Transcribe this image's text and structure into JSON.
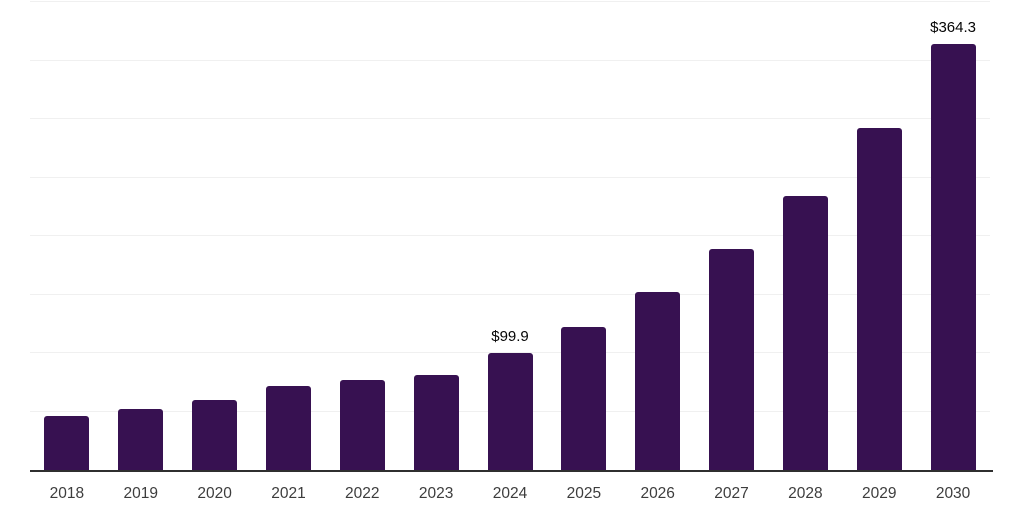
{
  "chart_data": {
    "type": "bar",
    "title": "",
    "xlabel": "",
    "ylabel": "",
    "categories": [
      "2018",
      "2019",
      "2020",
      "2021",
      "2022",
      "2023",
      "2024",
      "2025",
      "2026",
      "2027",
      "2028",
      "2029",
      "2030"
    ],
    "values": [
      46,
      52,
      60,
      72,
      77,
      81.5,
      99.9,
      122,
      152,
      189,
      234,
      292,
      364.3
    ],
    "data_labels": [
      "",
      "",
      "",
      "",
      "",
      "",
      "$99.9",
      "",
      "",
      "",
      "",
      "",
      "$364.3"
    ],
    "ylim": [
      0,
      400
    ],
    "gridline_step": 50,
    "grid": "horizontal-only",
    "legend": "none",
    "y_axis_tick_labels": "none",
    "colors": {
      "bar": "#371151",
      "gridline": "#f0f0f0",
      "axis_line": "#2f2f2f",
      "x_tick_label": "#3d3d3d",
      "data_label": "#050505",
      "background": "#ffffff"
    }
  }
}
